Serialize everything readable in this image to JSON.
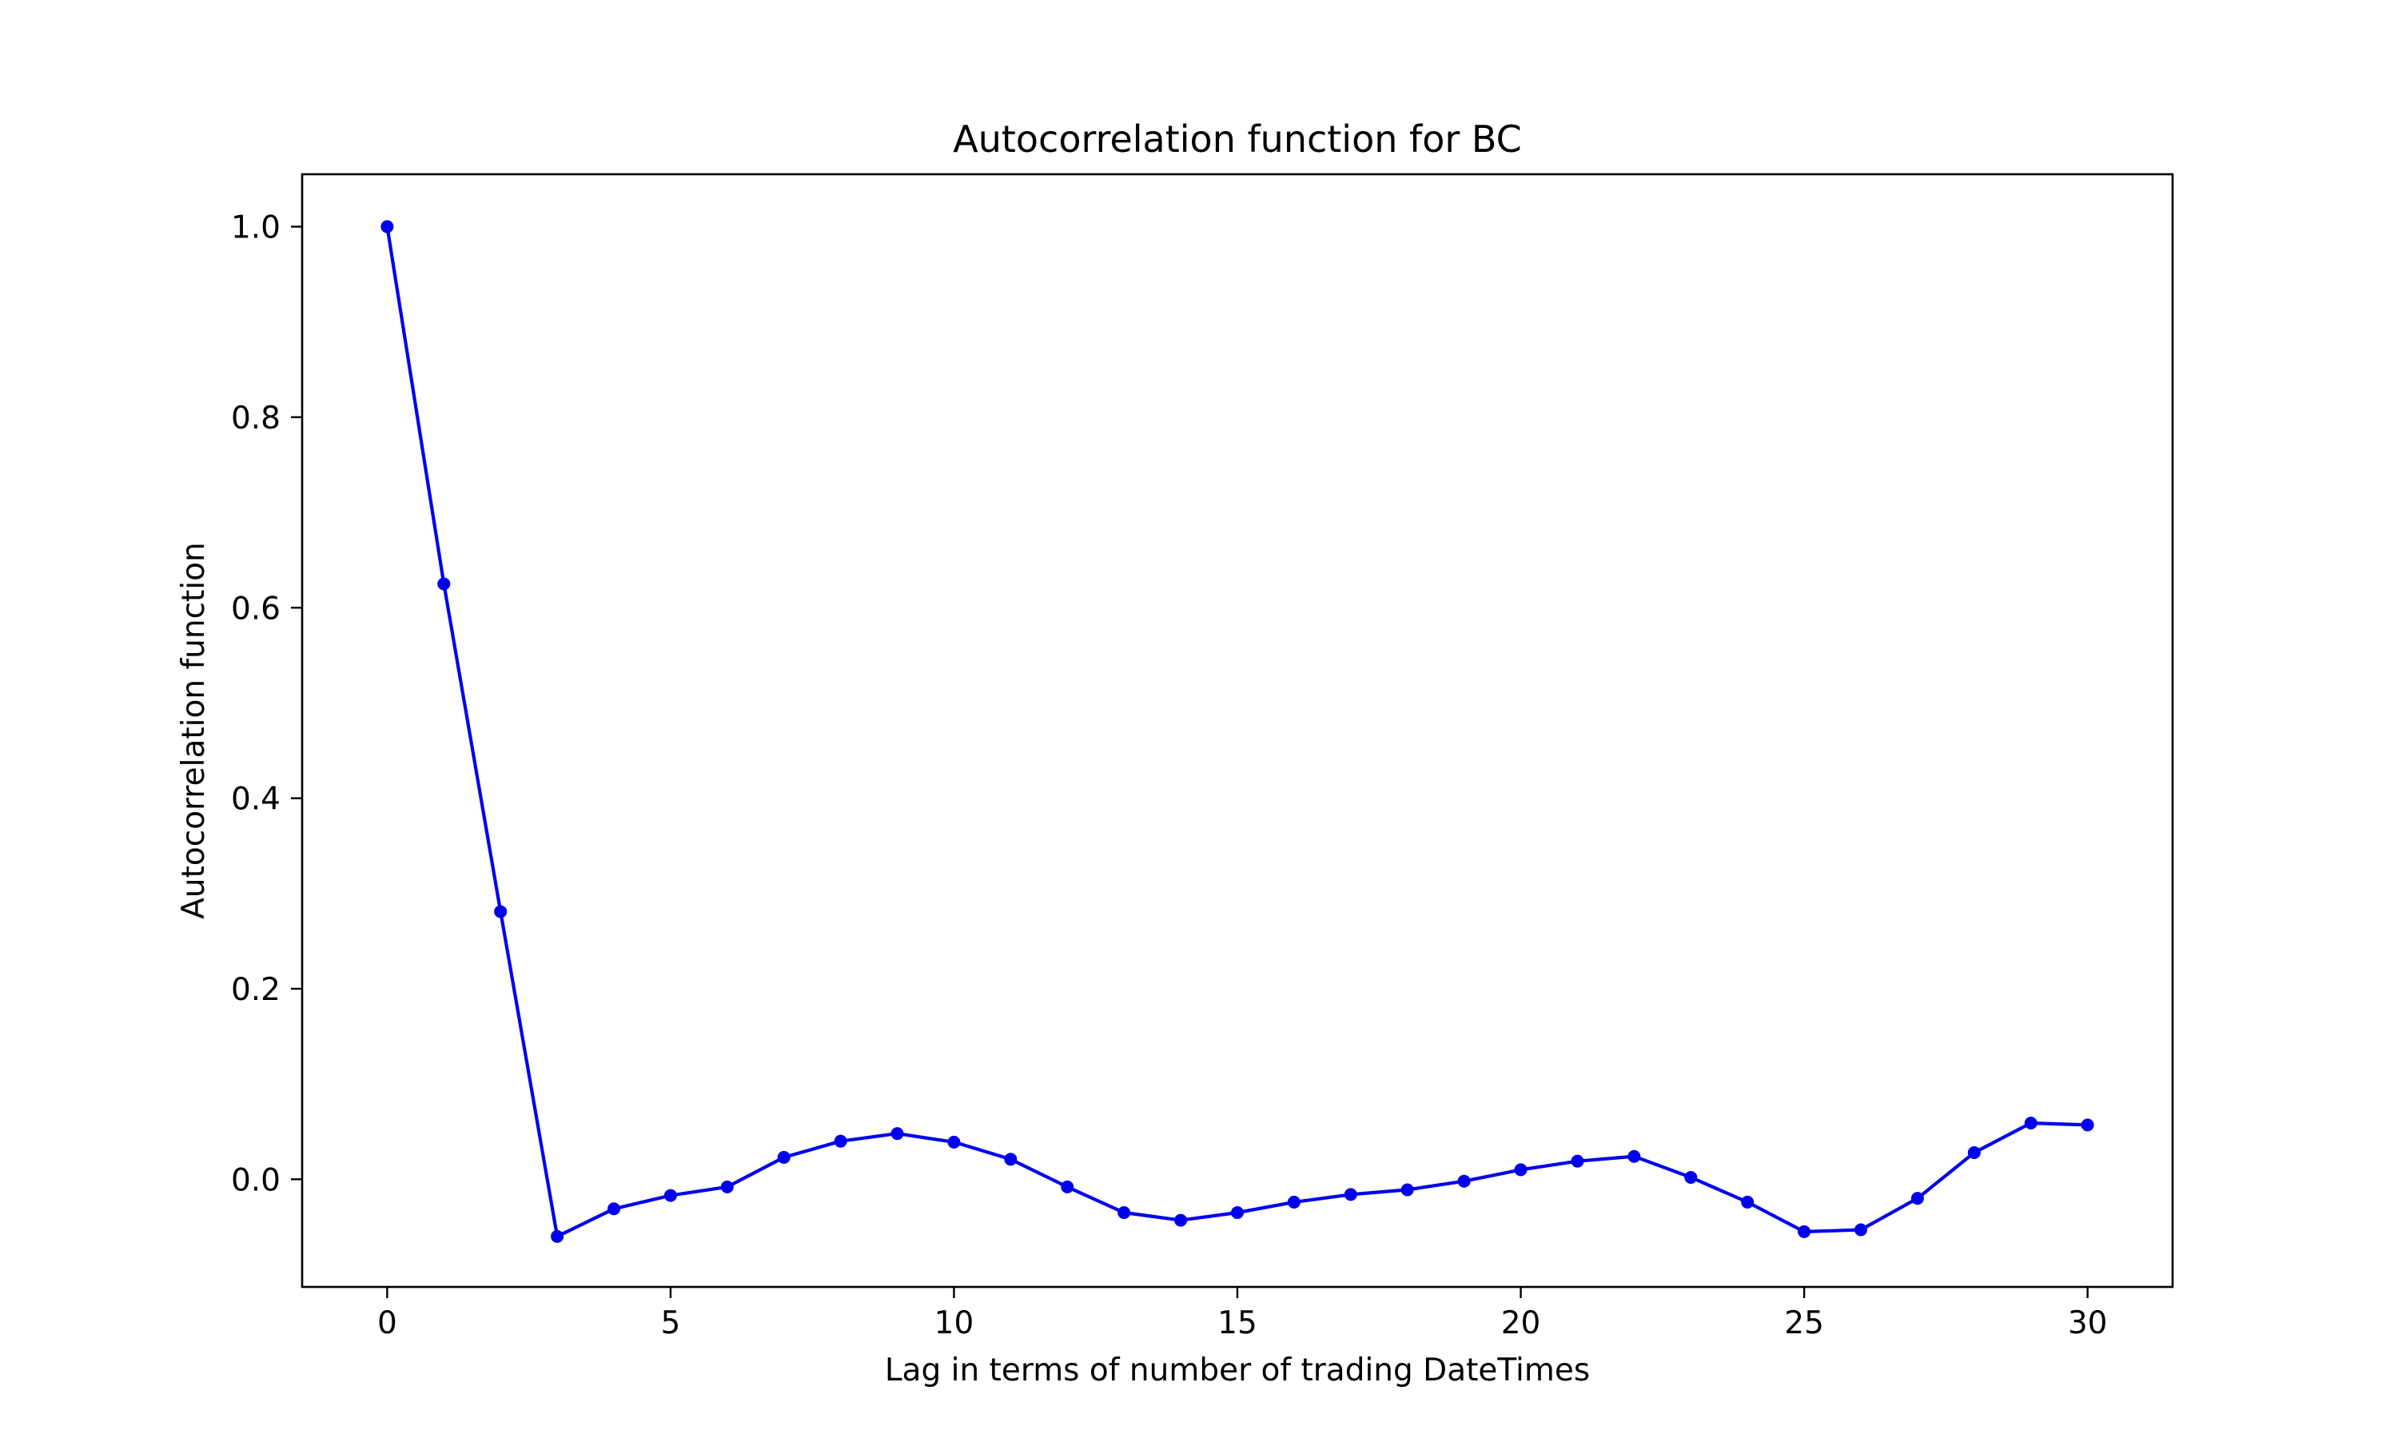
{
  "chart_data": {
    "type": "line",
    "title": "Autocorrelation function for BC",
    "xlabel": "Lag in terms of number of trading DateTimes",
    "ylabel": "Autocorrelation function",
    "xlim": [
      -1.5,
      31.5
    ],
    "ylim": [
      -0.113,
      1.055
    ],
    "xticks": [
      0,
      5,
      10,
      15,
      20,
      25,
      30
    ],
    "xtick_labels": [
      "0",
      "5",
      "10",
      "15",
      "20",
      "25",
      "30"
    ],
    "yticks": [
      0.0,
      0.2,
      0.4,
      0.6,
      0.8,
      1.0
    ],
    "ytick_labels": [
      "0.0",
      "0.2",
      "0.4",
      "0.6",
      "0.8",
      "1.0"
    ],
    "grid": false,
    "legend": "none",
    "series": [
      {
        "color": "#0000ee",
        "marker": "circle",
        "x": [
          0,
          1,
          2,
          3,
          4,
          5,
          6,
          7,
          8,
          9,
          10,
          11,
          12,
          13,
          14,
          15,
          16,
          17,
          18,
          19,
          20,
          21,
          22,
          23,
          24,
          25,
          26,
          27,
          28,
          29,
          30
        ],
        "y": [
          1.0,
          0.625,
          0.281,
          -0.06,
          -0.031,
          -0.017,
          -0.008,
          0.023,
          0.04,
          0.048,
          0.039,
          0.021,
          -0.008,
          -0.035,
          -0.043,
          -0.035,
          -0.024,
          -0.016,
          -0.011,
          -0.002,
          0.01,
          0.019,
          0.024,
          0.002,
          -0.024,
          -0.055,
          -0.053,
          -0.02,
          0.028,
          0.059,
          0.057
        ]
      }
    ]
  }
}
